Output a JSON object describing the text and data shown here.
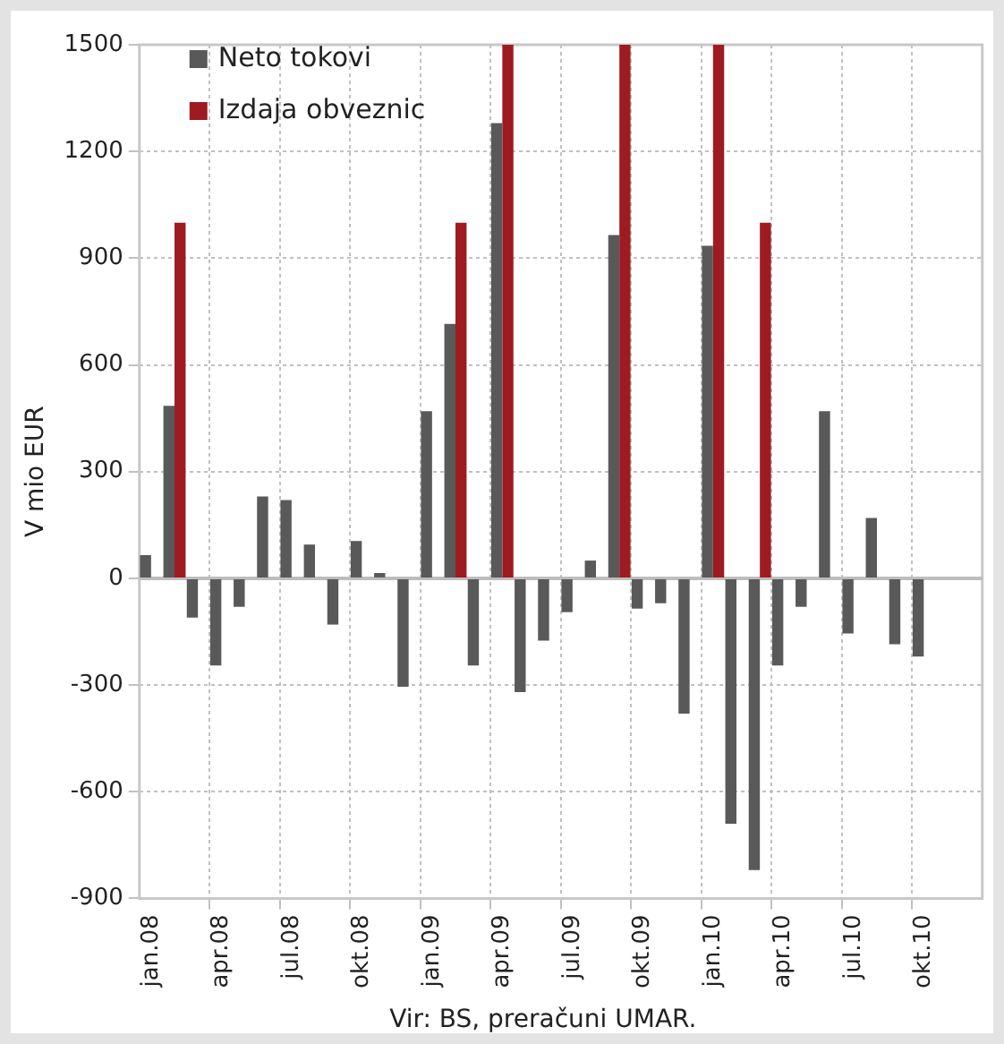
{
  "chart_data": {
    "type": "bar",
    "ylabel": "V mio EUR",
    "categories": [
      "jan.08",
      null,
      null,
      "apr.08",
      null,
      null,
      "jul.08",
      null,
      null,
      "okt.08",
      null,
      null,
      "jan.09",
      null,
      null,
      "apr.09",
      null,
      null,
      "jul.09",
      null,
      null,
      "okt.09",
      null,
      null,
      "jan.10",
      null,
      null,
      "apr.10",
      null,
      null,
      "jul.10",
      null,
      null,
      "okt.10",
      null,
      null
    ],
    "series": [
      {
        "name": "Neto tokovi",
        "color": "#595959",
        "values": [
          65,
          485,
          -110,
          -245,
          -80,
          230,
          220,
          95,
          -130,
          105,
          15,
          -305,
          470,
          715,
          -245,
          1280,
          -320,
          -175,
          -95,
          50,
          965,
          -85,
          -70,
          -380,
          935,
          -690,
          -820,
          -245,
          -80,
          470,
          -155,
          170,
          -185,
          -220,
          null,
          null
        ]
      },
      {
        "name": "Izdaja obveznic",
        "color": "#9e1b22",
        "values": [
          null,
          1000,
          null,
          null,
          null,
          null,
          null,
          null,
          null,
          null,
          null,
          null,
          null,
          1000,
          null,
          1500,
          null,
          null,
          null,
          null,
          1500,
          null,
          null,
          null,
          1500,
          null,
          1000,
          null,
          null,
          null,
          null,
          null,
          null,
          null,
          null,
          null
        ]
      }
    ],
    "ylim": [
      -900,
      1500
    ],
    "yticks": [
      -900,
      -600,
      -300,
      0,
      300,
      600,
      900,
      1200,
      1500
    ],
    "grid": true,
    "legend": "top left",
    "annotations": [
      "Vir: BS, preračuni UMAR."
    ]
  }
}
